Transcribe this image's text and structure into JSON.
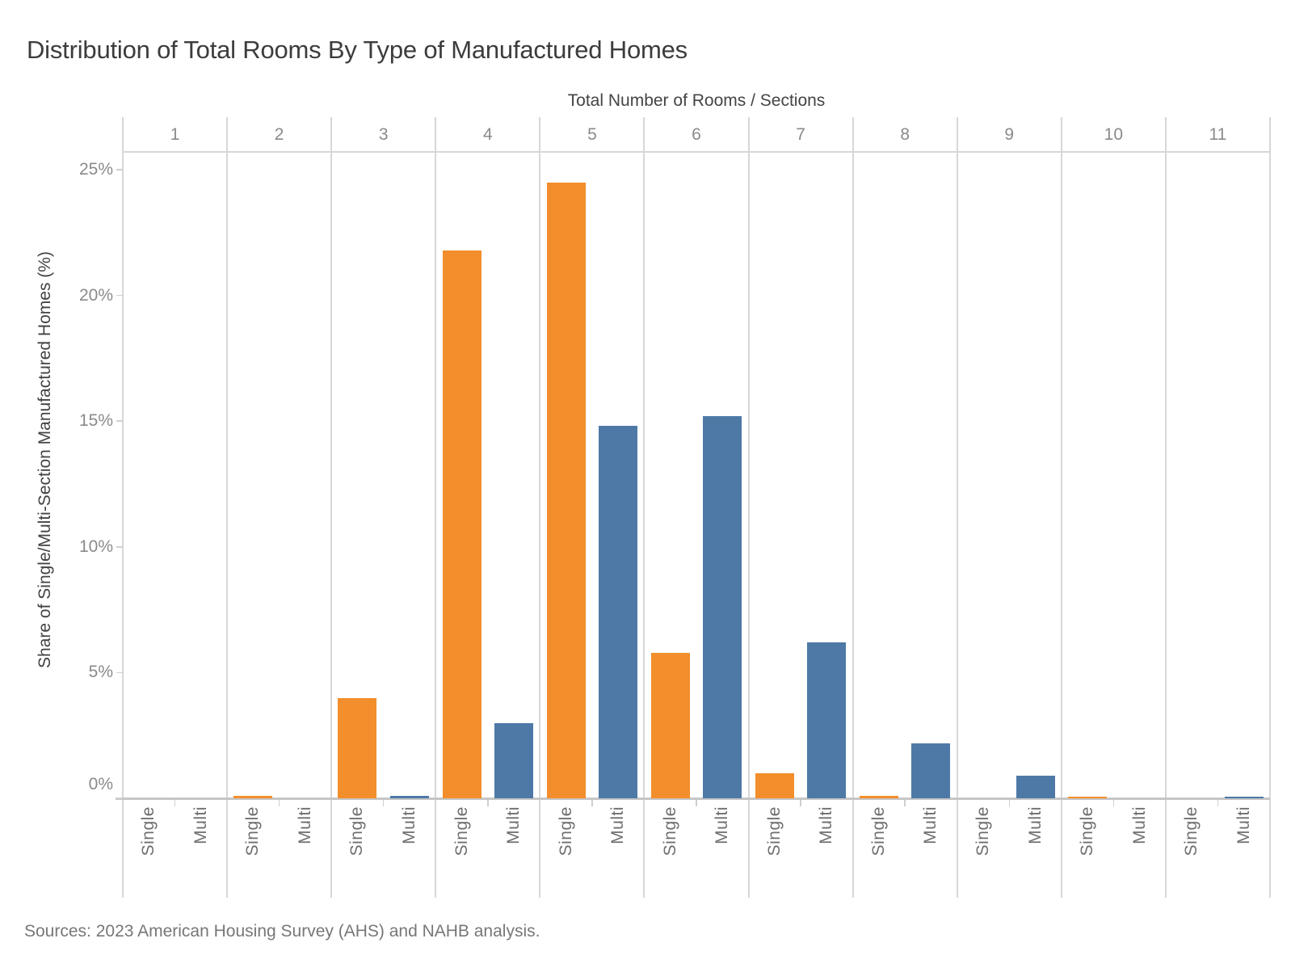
{
  "title": "Distribution of Total Rooms By Type of Manufactured Homes",
  "source_note": "Sources: 2023 American Housing Survey (AHS) and NAHB analysis.",
  "chart_data": {
    "type": "bar",
    "title": "Distribution of Total Rooms By Type of Manufactured Homes",
    "x_axis_title": "Total Number of Rooms / Sections",
    "y_axis_title": "Share of Single/Multi-Section Manufactured Homes (%)",
    "categories": [
      "1",
      "2",
      "3",
      "4",
      "5",
      "6",
      "7",
      "8",
      "9",
      "10",
      "11"
    ],
    "series": [
      {
        "name": "Single",
        "color": "#F28E2B",
        "values": [
          0,
          0.1,
          4.0,
          21.8,
          24.5,
          5.8,
          1.0,
          0.1,
          0,
          0.05,
          0
        ]
      },
      {
        "name": "Multi",
        "color": "#4E79A7",
        "values": [
          0,
          0,
          0.1,
          3.0,
          14.8,
          15.2,
          6.2,
          2.2,
          0.9,
          0,
          0.05
        ]
      }
    ],
    "y_ticks": [
      "0%",
      "5%",
      "10%",
      "15%",
      "20%",
      "25%"
    ],
    "y_tick_values": [
      0,
      5,
      10,
      15,
      20,
      25
    ],
    "ylim": [
      0,
      25
    ],
    "grid": "vertical column separators only, no horizontal gridlines",
    "legend": "none (Single/Multi labels under each column group)"
  }
}
